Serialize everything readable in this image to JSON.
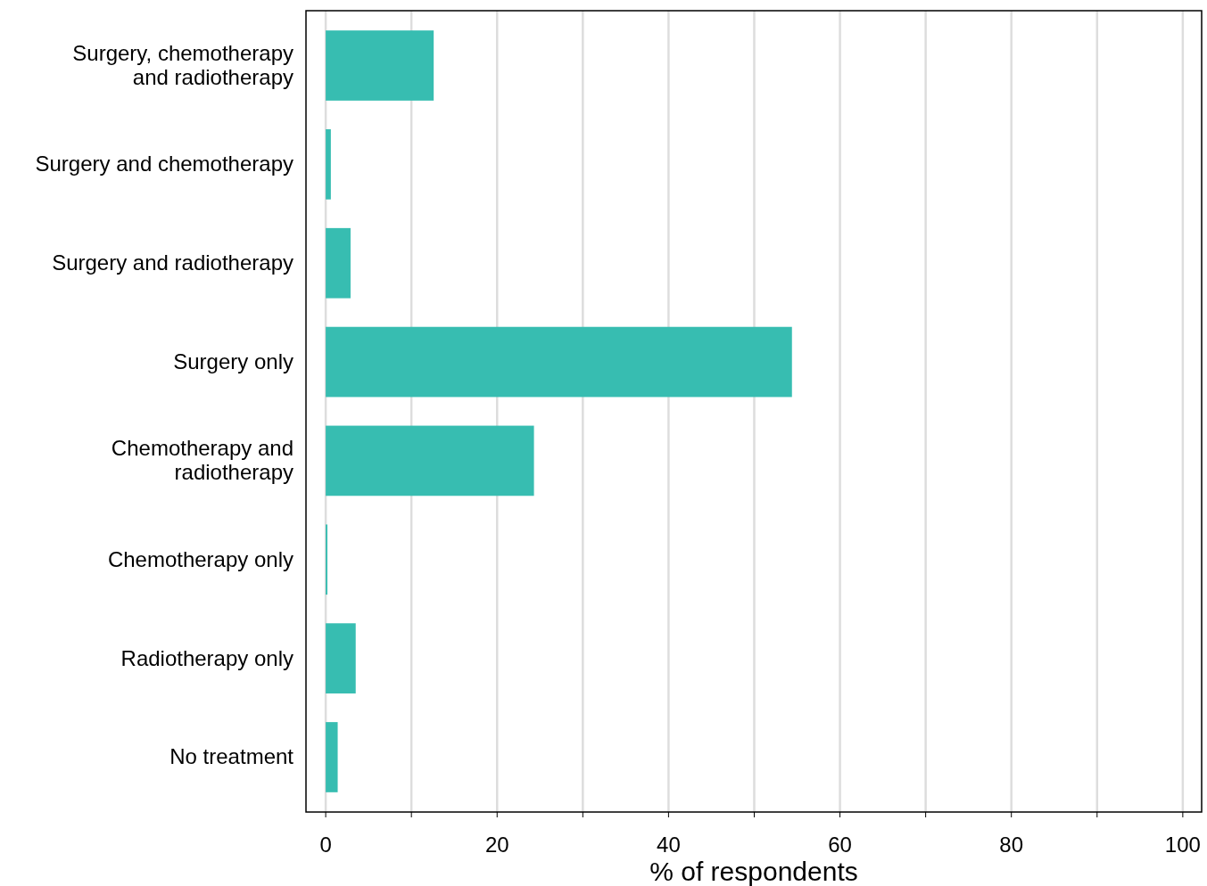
{
  "chart_data": {
    "type": "bar",
    "orientation": "horizontal",
    "categories": [
      "Surgery, chemotherapy\nand radiotherapy",
      "Surgery and chemotherapy",
      "Surgery and radiotherapy",
      "Surgery only",
      "Chemotherapy and\nradiotherapy",
      "Chemotherapy only",
      "Radiotherapy only",
      "No treatment"
    ],
    "values": [
      12.6,
      0.6,
      2.9,
      54.4,
      24.3,
      0.2,
      3.5,
      1.4
    ],
    "color": "#37bdb1",
    "xlabel": "% of respondents",
    "xlim": [
      -2.3,
      102.2
    ],
    "xticks": [
      0,
      {
        "value": 10,
        "label": null
      },
      20,
      {
        "value": 30,
        "label": null
      },
      40,
      {
        "value": 50,
        "label": null
      },
      60,
      {
        "value": 70,
        "label": null
      },
      80,
      {
        "value": 90,
        "label": null
      },
      100
    ],
    "grid": "x"
  }
}
